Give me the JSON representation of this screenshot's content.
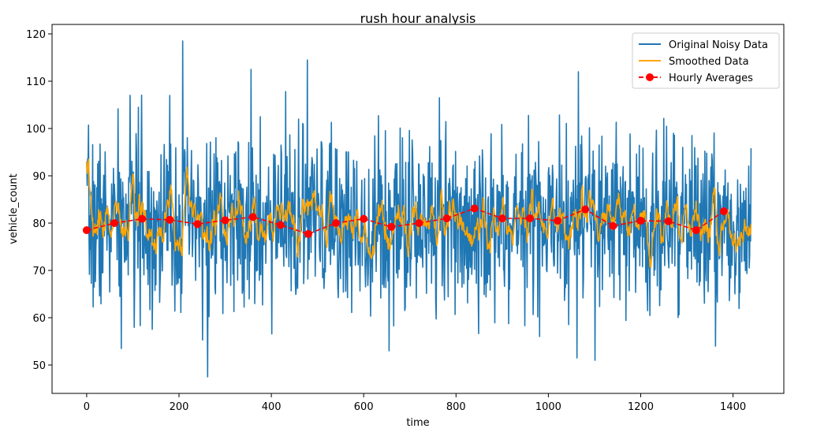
{
  "chart_data": {
    "type": "line",
    "title": "rush hour analysis",
    "xlabel": "time",
    "ylabel": "vehicle_count",
    "xlim": [
      -75,
      1510
    ],
    "ylim": [
      44,
      122
    ],
    "xticks": [
      0,
      200,
      400,
      600,
      800,
      1000,
      1200,
      1400
    ],
    "yticks": [
      50,
      60,
      70,
      80,
      90,
      100,
      110,
      120
    ],
    "grid": false,
    "legend_position": "top-right",
    "series": [
      {
        "name": "Original Noisy Data",
        "color": "#1f77b4",
        "style": "solid",
        "x_range": [
          0,
          1439
        ],
        "mean": 80,
        "std": 9,
        "seed": 7,
        "peaks": [
          {
            "x": 208,
            "y": 118.5
          },
          {
            "x": 478,
            "y": 114.5
          },
          {
            "x": 356,
            "y": 112.5
          },
          {
            "x": 1065,
            "y": 112
          },
          {
            "x": 180,
            "y": 107
          },
          {
            "x": 112,
            "y": 104.5
          },
          {
            "x": 764,
            "y": 106.5
          },
          {
            "x": 262,
            "y": 47.5
          },
          {
            "x": 75,
            "y": 53.5
          },
          {
            "x": 655,
            "y": 53
          },
          {
            "x": 1062,
            "y": 51.5
          },
          {
            "x": 1101,
            "y": 51
          },
          {
            "x": 1362,
            "y": 54
          }
        ]
      },
      {
        "name": "Smoothed Data",
        "color": "#ffa500",
        "style": "solid",
        "x_range": [
          0,
          1439
        ],
        "derived_from": "Original Noisy Data",
        "window": 10
      },
      {
        "name": "Hourly Averages",
        "color": "#ff0000",
        "style": "dashed",
        "marker": "circle",
        "x": [
          0,
          60,
          120,
          180,
          240,
          300,
          360,
          420,
          480,
          540,
          600,
          660,
          720,
          780,
          840,
          900,
          960,
          1020,
          1080,
          1140,
          1200,
          1260,
          1320,
          1380
        ],
        "values": [
          78.5,
          80.0,
          80.9,
          80.7,
          79.8,
          80.6,
          81.3,
          79.6,
          77.7,
          80.0,
          80.9,
          79.2,
          80.0,
          81.0,
          83.1,
          81.0,
          81.0,
          80.5,
          82.9,
          79.4,
          80.5,
          80.4,
          78.5,
          82.5
        ]
      }
    ]
  }
}
